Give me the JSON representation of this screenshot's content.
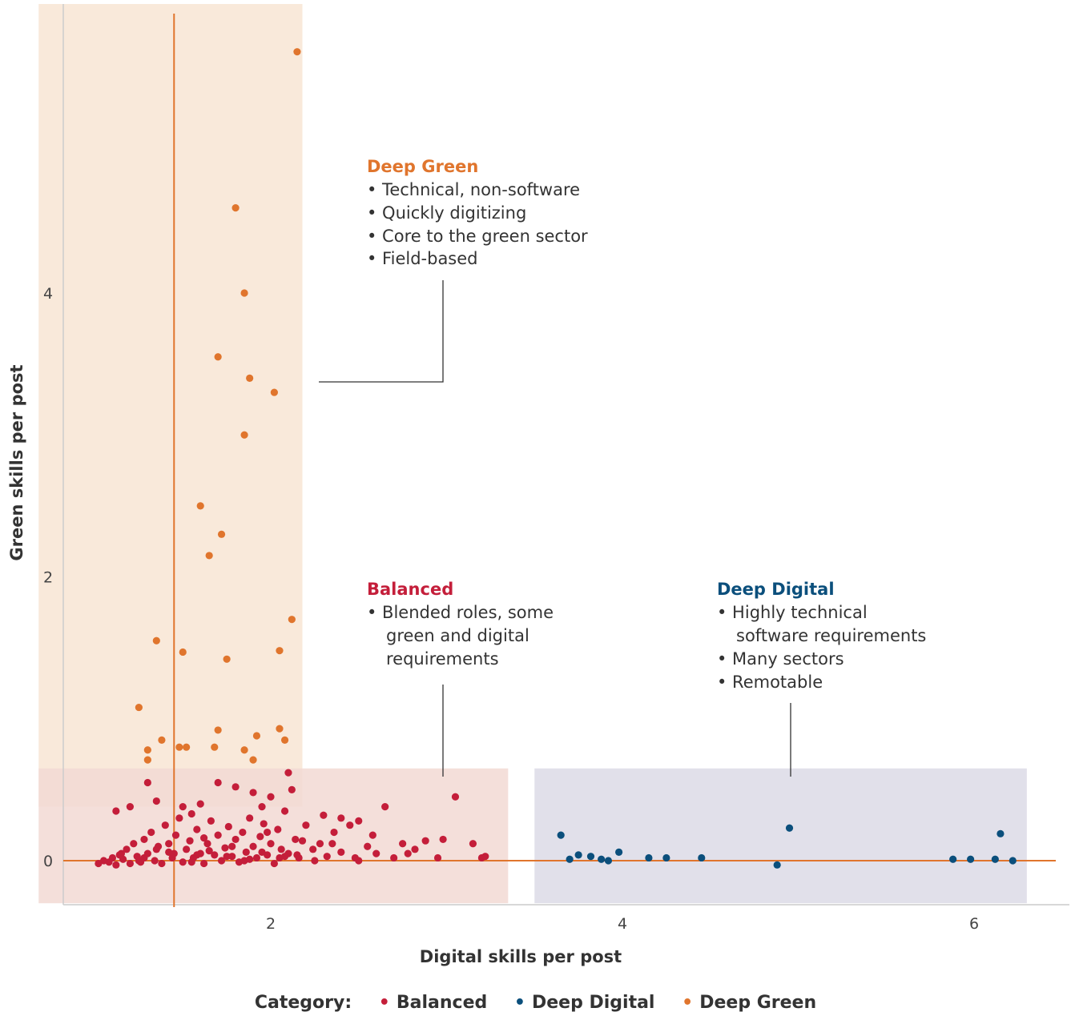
{
  "chart_data": {
    "type": "scatter",
    "xlabel": "Digital skills per post",
    "ylabel": "Green skills per post",
    "xlim": [
      0.6,
      6.6
    ],
    "ylim": [
      -0.3,
      6.2
    ],
    "x_ticks": [
      2,
      4,
      6
    ],
    "y_ticks": [
      0,
      2,
      4
    ],
    "grid": false,
    "reference_lines": {
      "vertical_x": 1.45,
      "horizontal_y": 0
    },
    "colors": {
      "Balanced": "#c41e3a",
      "Deep Digital": "#0b4f7c",
      "Deep Green": "#e0752d"
    },
    "regions": [
      {
        "category": "Deep Green",
        "x": [
          0.68,
          2.18
        ],
        "y": [
          0.38,
          6.2
        ],
        "color": "#f8e5d3"
      },
      {
        "category": "Balanced",
        "x": [
          0.68,
          3.35
        ],
        "y": [
          -0.3,
          0.65
        ],
        "color": "#f2d9d3"
      },
      {
        "category": "Deep Digital",
        "x": [
          3.5,
          6.3
        ],
        "y": [
          -0.3,
          0.65
        ],
        "color": "#dcdbe6"
      }
    ],
    "series": [
      {
        "name": "Deep Green",
        "points": [
          [
            2.15,
            5.7
          ],
          [
            1.8,
            4.6
          ],
          [
            1.85,
            4.0
          ],
          [
            1.7,
            3.55
          ],
          [
            1.88,
            3.4
          ],
          [
            2.02,
            3.3
          ],
          [
            1.85,
            3.0
          ],
          [
            1.6,
            2.5
          ],
          [
            1.72,
            2.3
          ],
          [
            1.65,
            2.15
          ],
          [
            2.12,
            1.7
          ],
          [
            1.35,
            1.55
          ],
          [
            1.5,
            1.47
          ],
          [
            2.05,
            1.48
          ],
          [
            1.75,
            1.42
          ],
          [
            1.25,
            1.08
          ],
          [
            1.7,
            0.92
          ],
          [
            2.05,
            0.93
          ],
          [
            1.38,
            0.85
          ],
          [
            1.92,
            0.88
          ],
          [
            1.3,
            0.78
          ],
          [
            1.48,
            0.8
          ],
          [
            1.52,
            0.8
          ],
          [
            1.68,
            0.8
          ],
          [
            1.85,
            0.78
          ],
          [
            2.08,
            0.85
          ],
          [
            1.3,
            0.71
          ],
          [
            1.9,
            0.71
          ]
        ]
      },
      {
        "name": "Balanced",
        "points": [
          [
            1.02,
            -0.02
          ],
          [
            1.05,
            0.0
          ],
          [
            1.08,
            -0.01
          ],
          [
            1.1,
            0.02
          ],
          [
            1.12,
            -0.03
          ],
          [
            1.14,
            0.04
          ],
          [
            1.16,
            0.01
          ],
          [
            1.18,
            0.08
          ],
          [
            1.2,
            -0.02
          ],
          [
            1.22,
            0.12
          ],
          [
            1.24,
            0.03
          ],
          [
            1.26,
            -0.01
          ],
          [
            1.28,
            0.15
          ],
          [
            1.3,
            0.05
          ],
          [
            1.32,
            0.2
          ],
          [
            1.34,
            0.0
          ],
          [
            1.36,
            0.1
          ],
          [
            1.38,
            -0.02
          ],
          [
            1.4,
            0.25
          ],
          [
            1.42,
            0.06
          ],
          [
            1.44,
            0.02
          ],
          [
            1.46,
            0.18
          ],
          [
            1.48,
            0.3
          ],
          [
            1.5,
            -0.01
          ],
          [
            1.52,
            0.08
          ],
          [
            1.54,
            0.14
          ],
          [
            1.56,
            0.02
          ],
          [
            1.58,
            0.22
          ],
          [
            1.6,
            0.05
          ],
          [
            1.62,
            -0.02
          ],
          [
            1.64,
            0.12
          ],
          [
            1.66,
            0.28
          ],
          [
            1.68,
            0.04
          ],
          [
            1.7,
            0.18
          ],
          [
            1.72,
            0.0
          ],
          [
            1.74,
            0.09
          ],
          [
            1.76,
            0.24
          ],
          [
            1.78,
            0.03
          ],
          [
            1.8,
            0.15
          ],
          [
            1.82,
            -0.01
          ],
          [
            1.84,
            0.2
          ],
          [
            1.86,
            0.06
          ],
          [
            1.88,
            0.3
          ],
          [
            1.9,
            0.1
          ],
          [
            1.92,
            0.02
          ],
          [
            1.94,
            0.17
          ],
          [
            1.96,
            0.26
          ],
          [
            1.98,
            0.04
          ],
          [
            2.0,
            0.12
          ],
          [
            2.02,
            -0.02
          ],
          [
            2.04,
            0.22
          ],
          [
            2.06,
            0.08
          ],
          [
            2.08,
            0.35
          ],
          [
            2.1,
            0.05
          ],
          [
            2.12,
            0.5
          ],
          [
            2.14,
            0.15
          ],
          [
            2.16,
            0.02
          ],
          [
            2.2,
            0.25
          ],
          [
            2.24,
            0.08
          ],
          [
            2.28,
            0.12
          ],
          [
            2.32,
            0.03
          ],
          [
            2.36,
            0.2
          ],
          [
            2.4,
            0.06
          ],
          [
            2.45,
            0.25
          ],
          [
            2.5,
            0.0
          ],
          [
            2.55,
            0.1
          ],
          [
            2.6,
            0.05
          ],
          [
            2.65,
            0.38
          ],
          [
            2.7,
            0.02
          ],
          [
            2.75,
            0.12
          ],
          [
            2.82,
            0.08
          ],
          [
            2.88,
            0.14
          ],
          [
            2.95,
            0.02
          ],
          [
            3.05,
            0.45
          ],
          [
            3.15,
            0.12
          ],
          [
            3.2,
            0.02
          ],
          [
            3.22,
            0.03
          ],
          [
            1.15,
            0.05
          ],
          [
            1.25,
            0.0
          ],
          [
            1.35,
            0.08
          ],
          [
            1.45,
            0.05
          ],
          [
            1.55,
            -0.01
          ],
          [
            1.65,
            0.07
          ],
          [
            1.75,
            0.03
          ],
          [
            1.85,
            0.0
          ],
          [
            1.95,
            0.06
          ],
          [
            2.05,
            0.02
          ],
          [
            2.15,
            0.04
          ],
          [
            2.25,
            0.0
          ],
          [
            1.2,
            0.38
          ],
          [
            1.35,
            0.42
          ],
          [
            1.5,
            0.38
          ],
          [
            1.6,
            0.4
          ],
          [
            1.7,
            0.55
          ],
          [
            1.8,
            0.52
          ],
          [
            1.9,
            0.48
          ],
          [
            2.0,
            0.45
          ],
          [
            2.1,
            0.62
          ],
          [
            1.3,
            0.55
          ],
          [
            1.55,
            0.33
          ],
          [
            1.95,
            0.38
          ],
          [
            2.3,
            0.32
          ],
          [
            2.4,
            0.3
          ],
          [
            2.5,
            0.28
          ],
          [
            1.12,
            0.35
          ],
          [
            1.42,
            0.12
          ],
          [
            1.62,
            0.16
          ],
          [
            1.78,
            0.1
          ],
          [
            1.98,
            0.2
          ],
          [
            2.18,
            0.14
          ],
          [
            2.35,
            0.12
          ],
          [
            2.58,
            0.18
          ],
          [
            2.78,
            0.05
          ],
          [
            2.98,
            0.15
          ],
          [
            1.28,
            0.02
          ],
          [
            1.58,
            0.04
          ],
          [
            1.88,
            0.01
          ],
          [
            2.08,
            0.03
          ],
          [
            2.48,
            0.02
          ]
        ]
      },
      {
        "name": "Deep Digital",
        "points": [
          [
            3.65,
            0.18
          ],
          [
            3.7,
            0.01
          ],
          [
            3.75,
            0.04
          ],
          [
            3.82,
            0.03
          ],
          [
            3.88,
            0.01
          ],
          [
            3.92,
            0.0
          ],
          [
            3.98,
            0.06
          ],
          [
            4.15,
            0.02
          ],
          [
            4.25,
            0.02
          ],
          [
            4.45,
            0.02
          ],
          [
            4.88,
            -0.03
          ],
          [
            4.95,
            0.23
          ],
          [
            5.88,
            0.01
          ],
          [
            5.98,
            0.01
          ],
          [
            6.12,
            0.01
          ],
          [
            6.15,
            0.19
          ],
          [
            6.22,
            0.0
          ]
        ]
      }
    ],
    "annotations": [
      {
        "category": "Deep Green",
        "title": "Deep Green",
        "bullets": [
          "Technical, non-software",
          "Quickly digitizing",
          "Core to the green sector",
          "Field-based"
        ]
      },
      {
        "category": "Balanced",
        "title": "Balanced",
        "bullets": [
          "Blended roles, some",
          "green and digital",
          "requirements"
        ]
      },
      {
        "category": "Deep Digital",
        "title": "Deep Digital",
        "bullets": [
          "Highly technical",
          "software requirements",
          "Many sectors",
          "Remotable"
        ]
      }
    ],
    "legend": {
      "title": "Category:",
      "items": [
        "Balanced",
        "Deep Digital",
        "Deep Green"
      ],
      "placement": "bottom"
    }
  }
}
